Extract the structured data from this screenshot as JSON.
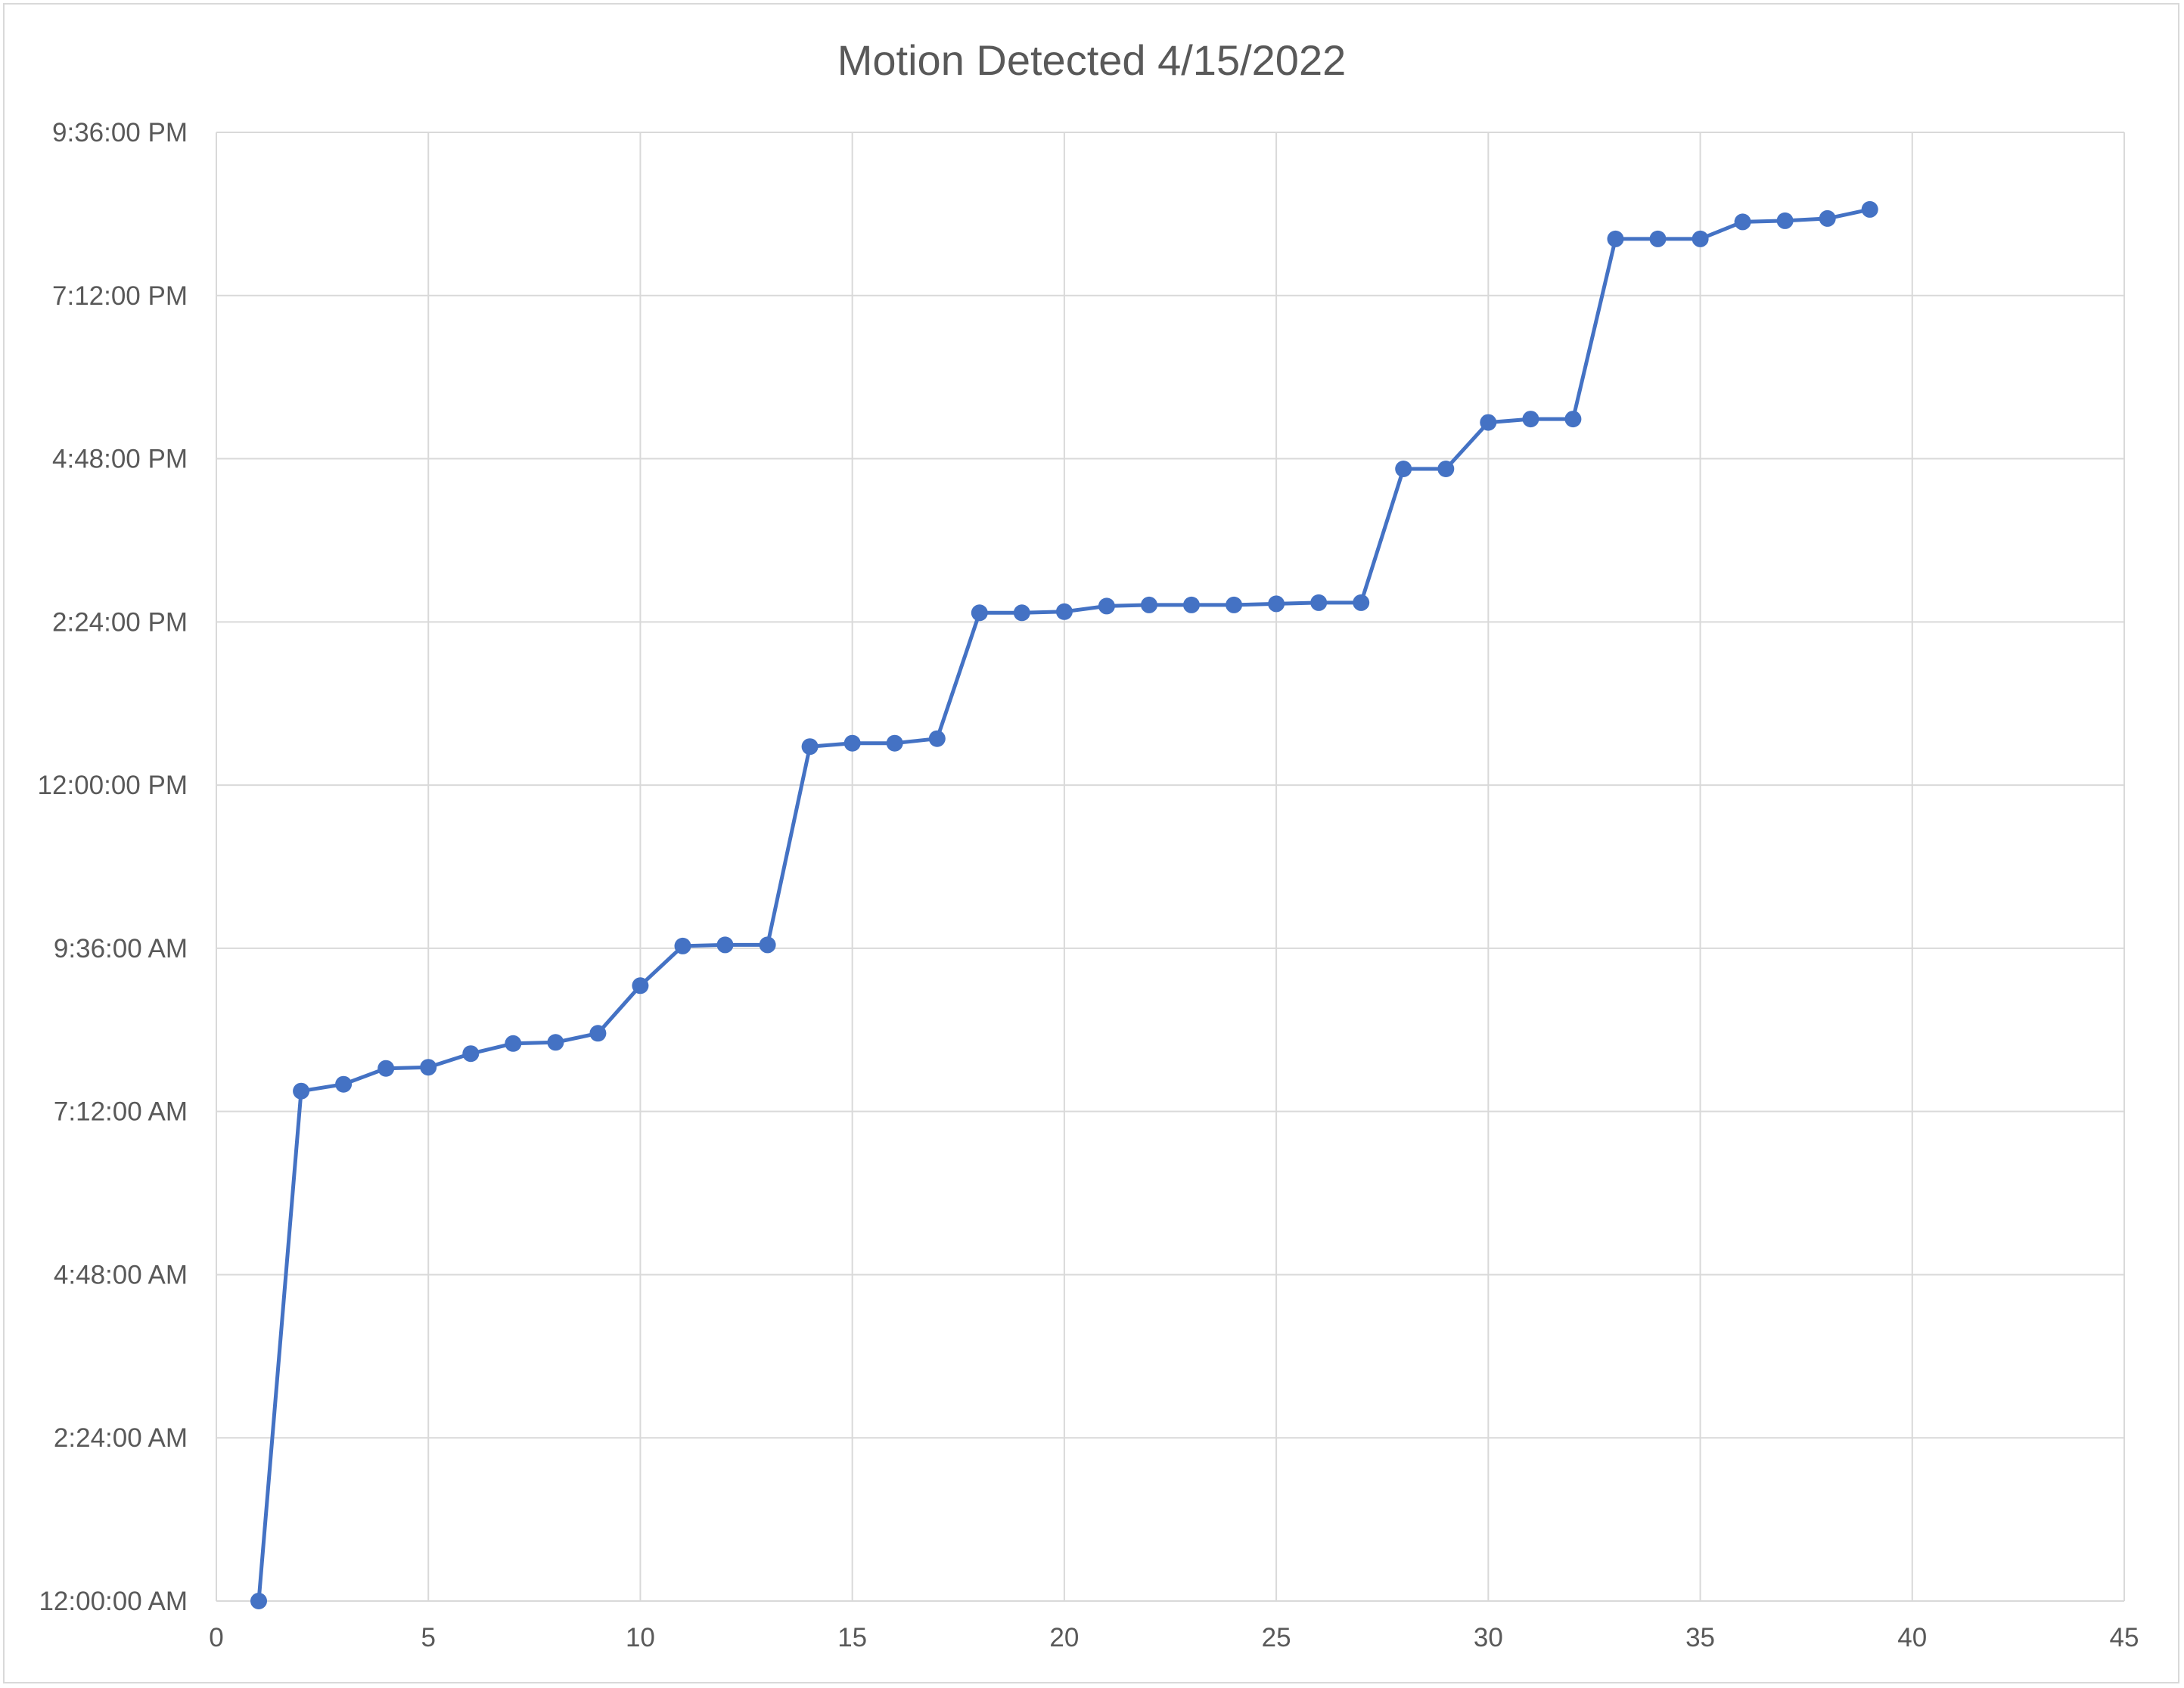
{
  "chart_data": {
    "type": "line",
    "title": "Motion Detected 4/15/2022",
    "xlabel": "",
    "ylabel": "",
    "xlim": [
      0,
      45
    ],
    "x_ticks": [
      0,
      5,
      10,
      15,
      20,
      25,
      30,
      35,
      40,
      45
    ],
    "ylim": [
      "12:00:00 AM",
      "9:36:00 PM"
    ],
    "y_ticks": [
      "12:00:00 AM",
      "2:24:00 AM",
      "4:48:00 AM",
      "7:12:00 AM",
      "9:36:00 AM",
      "12:00:00 PM",
      "2:24:00 PM",
      "4:48:00 PM",
      "7:12:00 PM",
      "9:36:00 PM"
    ],
    "grid": true,
    "legend": "none",
    "marker": "circle",
    "colors": {
      "series": "#4472C4",
      "grid": "#d9d9d9",
      "text": "#595959"
    },
    "series": [
      {
        "x": [
          1,
          2,
          3,
          4,
          5,
          6,
          7,
          8,
          9,
          10,
          11,
          12,
          13,
          14,
          15,
          16,
          17,
          18,
          19,
          20,
          21,
          22,
          23,
          24,
          25,
          26,
          27,
          28,
          29,
          30,
          31,
          32,
          33,
          34,
          35,
          36,
          37,
          38,
          39
        ],
        "y": [
          "12:00:00 AM",
          "7:30:00 AM",
          "7:36:00 AM",
          "7:50:00 AM",
          "7:51:00 AM",
          "8:03:00 AM",
          "8:12:00 AM",
          "8:13:00 AM",
          "8:21:00 AM",
          "9:03:00 AM",
          "9:38:00 AM",
          "9:39:00 AM",
          "9:39:00 AM",
          "12:34:00 PM",
          "12:37:00 PM",
          "12:37:00 PM",
          "12:41:00 PM",
          "2:32:00 PM",
          "2:32:00 PM",
          "2:33:00 PM",
          "2:38:00 PM",
          "2:39:00 PM",
          "2:39:00 PM",
          "2:39:00 PM",
          "2:40:00 PM",
          "2:41:00 PM",
          "2:41:00 PM",
          "4:39:00 PM",
          "4:39:00 PM",
          "5:20:00 PM",
          "5:23:00 PM",
          "5:23:00 PM",
          "8:02:00 PM",
          "8:02:00 PM",
          "8:02:00 PM",
          "8:17:00 PM",
          "8:18:00 PM",
          "8:20:00 PM",
          "8:28:00 PM"
        ]
      }
    ]
  }
}
